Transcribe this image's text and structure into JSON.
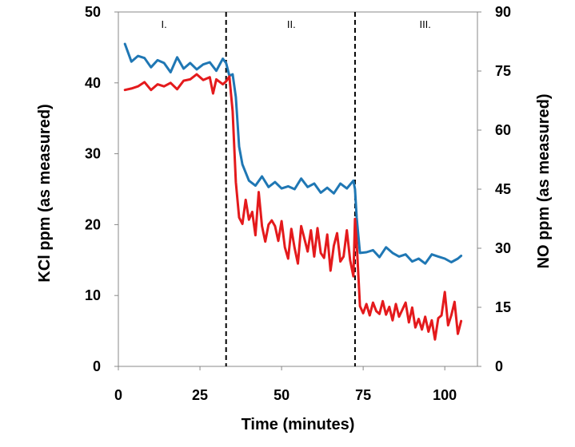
{
  "chart_data": {
    "type": "line",
    "title": "",
    "xlabel": "Time (minutes)",
    "ylabel_left": "KCl ppm (as measured)",
    "ylabel_right": "NO ppm (as measured)",
    "xlim": [
      0,
      110
    ],
    "ylim_left": [
      0,
      50
    ],
    "ylim_right": [
      0,
      90
    ],
    "x_ticks": [
      0,
      25,
      50,
      75,
      100
    ],
    "y_left_ticks": [
      0,
      10,
      20,
      30,
      40,
      50
    ],
    "y_right_ticks": [
      0,
      15,
      30,
      45,
      60,
      75,
      90
    ],
    "grid": false,
    "legend": "none",
    "phase_boundaries": [
      33,
      72.5
    ],
    "phase_labels": [
      {
        "text": "I.",
        "x": 14
      },
      {
        "text": "II.",
        "x": 53
      },
      {
        "text": "III.",
        "x": 94
      }
    ],
    "series": [
      {
        "axis": "left",
        "color": "#1f77b4",
        "x": [
          2,
          4,
          6,
          8,
          10,
          12,
          14,
          16,
          18,
          20,
          22,
          24,
          26,
          28,
          30,
          32,
          33,
          34,
          35,
          36,
          37,
          38,
          40,
          42,
          44,
          46,
          48,
          50,
          52,
          54,
          56,
          58,
          60,
          62,
          64,
          66,
          68,
          70,
          72,
          72.5,
          73,
          74,
          76,
          78,
          80,
          82,
          84,
          86,
          88,
          90,
          92,
          94,
          96,
          98,
          100,
          102,
          104,
          105
        ],
        "y": [
          45.5,
          43.0,
          43.8,
          43.5,
          42.2,
          43.2,
          42.8,
          41.5,
          43.6,
          42.0,
          42.8,
          41.9,
          42.6,
          42.9,
          41.7,
          43.4,
          42.8,
          41.0,
          41.2,
          38.0,
          31.0,
          28.5,
          26.2,
          25.5,
          26.8,
          25.3,
          26.0,
          25.1,
          25.4,
          25.0,
          26.5,
          25.3,
          25.8,
          24.5,
          25.2,
          24.4,
          25.8,
          25.1,
          26.2,
          25.0,
          21.0,
          16.0,
          16.1,
          16.4,
          15.4,
          16.8,
          16.0,
          15.5,
          15.8,
          14.8,
          15.2,
          14.5,
          15.8,
          15.5,
          15.2,
          14.7,
          15.2,
          15.6
        ]
      },
      {
        "axis": "left",
        "color": "#e41a1c",
        "x": [
          2,
          4,
          6,
          8,
          10,
          12,
          14,
          16,
          18,
          20,
          22,
          24,
          26,
          28,
          29,
          30,
          32,
          33,
          34,
          35,
          36,
          37,
          38,
          39,
          40,
          41,
          42,
          43,
          44,
          45,
          46,
          47,
          48,
          49,
          50,
          51,
          52,
          53,
          54,
          55,
          56,
          57,
          58,
          59,
          60,
          61,
          62,
          63,
          64,
          65,
          66,
          67,
          68,
          69,
          70,
          71,
          72,
          72.5,
          73,
          74,
          75,
          76,
          77,
          78,
          79,
          80,
          81,
          82,
          83,
          84,
          85,
          86,
          87,
          88,
          89,
          90,
          91,
          92,
          93,
          94,
          95,
          96,
          97,
          98,
          99,
          100,
          101,
          102,
          103,
          104,
          105
        ],
        "y": [
          39.0,
          39.2,
          39.5,
          40.1,
          39.0,
          39.8,
          39.5,
          40.0,
          39.1,
          40.3,
          40.5,
          41.2,
          40.4,
          40.8,
          38.5,
          40.5,
          39.8,
          40.2,
          40.9,
          36.0,
          26.0,
          21.0,
          20.1,
          23.5,
          20.7,
          21.8,
          18.5,
          24.6,
          19.8,
          17.6,
          20.0,
          20.6,
          19.8,
          17.7,
          20.5,
          16.8,
          15.2,
          19.4,
          16.7,
          14.5,
          19.8,
          18.0,
          16.2,
          19.2,
          15.5,
          19.5,
          16.0,
          15.3,
          18.6,
          13.5,
          17.0,
          18.8,
          14.8,
          15.5,
          19.2,
          15.0,
          12.7,
          20.8,
          17.5,
          8.5,
          7.5,
          8.8,
          7.2,
          9.0,
          7.8,
          7.4,
          9.2,
          7.3,
          8.4,
          6.5,
          8.8,
          7.0,
          8.0,
          9.0,
          6.2,
          8.3,
          5.5,
          6.7,
          5.2,
          7.0,
          4.9,
          6.5,
          3.8,
          6.8,
          7.2,
          10.5,
          5.8,
          7.2,
          9.1,
          4.6,
          6.4
        ]
      }
    ]
  }
}
